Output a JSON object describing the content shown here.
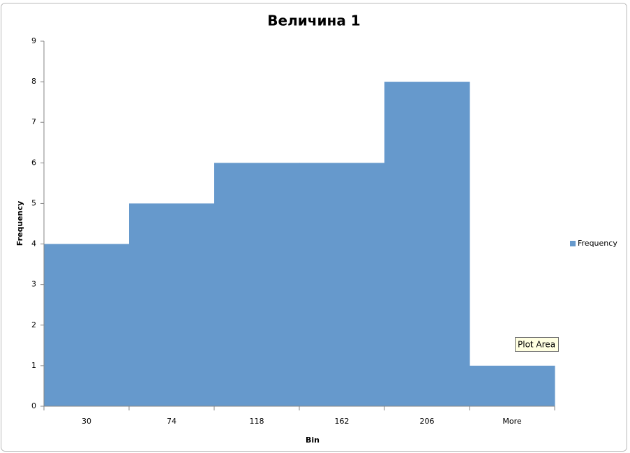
{
  "chart_data": {
    "type": "bar",
    "title": "Величина 1",
    "x_label": "Bin",
    "y_label": "Frequency",
    "categories": [
      "30",
      "74",
      "118",
      "162",
      "206",
      "More"
    ],
    "series": [
      {
        "name": "Frequency",
        "color": "#6699cc",
        "values": [
          4,
          5,
          6,
          6,
          8,
          1
        ]
      }
    ],
    "ylim": [
      0,
      9
    ],
    "yticks": [
      0,
      1,
      2,
      3,
      4,
      5,
      6,
      7,
      8,
      9
    ],
    "grid": false,
    "legend": "right",
    "tooltip": "Plot Area"
  }
}
